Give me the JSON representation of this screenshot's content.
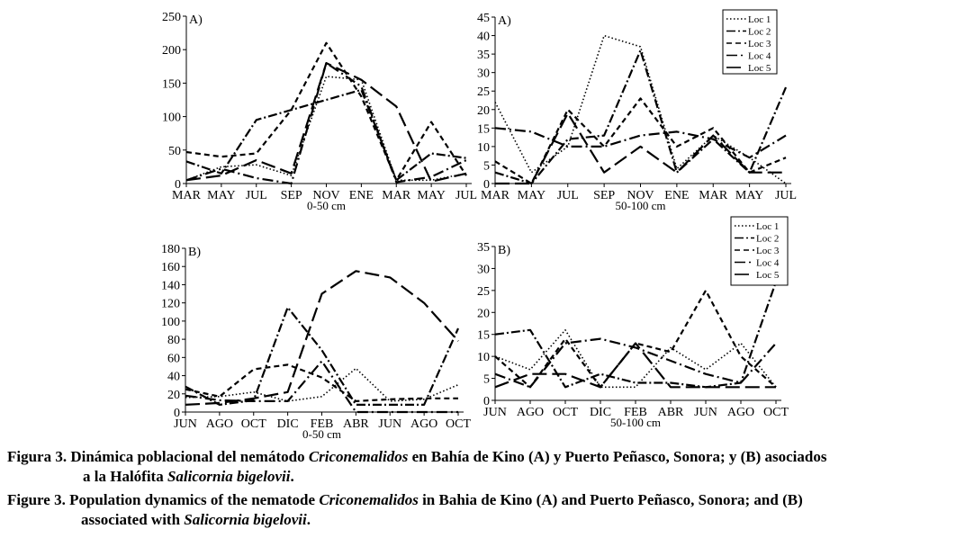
{
  "line_styles": {
    "Loc 1": "1.5,2.5",
    "Loc 2": "10,3,2,3",
    "Loc 3": "6,4",
    "Loc 4": "12,4,2,4",
    "Loc 5": "16,6"
  },
  "chart_data": [
    {
      "type": "line",
      "panel_label": "A)",
      "categories": [
        "MAR",
        "MAY",
        "JUL",
        "SEP",
        "NOV",
        "ENE",
        "MAR",
        "MAY",
        "JUL"
      ],
      "xlabel": "0-50 cm",
      "ylim": [
        0,
        250
      ],
      "yticks": [
        0,
        50,
        100,
        150,
        200,
        250
      ],
      "legend": false,
      "series": [
        {
          "name": "Loc 1",
          "values": [
            5,
            25,
            28,
            12,
            160,
            155,
            5,
            5,
            15
          ]
        },
        {
          "name": "Loc 2",
          "values": [
            33,
            15,
            95,
            110,
            125,
            140,
            5,
            45,
            38
          ]
        },
        {
          "name": "Loc 3",
          "values": [
            47,
            40,
            45,
            110,
            210,
            130,
            5,
            92,
            12
          ]
        },
        {
          "name": "Loc 4",
          "values": [
            5,
            22,
            8,
            0,
            180,
            145,
            2,
            10,
            35
          ]
        },
        {
          "name": "Loc 5",
          "values": [
            5,
            12,
            35,
            15,
            180,
            155,
            115,
            3,
            15
          ]
        }
      ]
    },
    {
      "type": "line",
      "panel_label": "A)",
      "categories": [
        "MAR",
        "MAY",
        "JUL",
        "SEP",
        "NOV",
        "ENE",
        "MAR",
        "MAY",
        "JUL"
      ],
      "xlabel": "50-100 cm",
      "ylim": [
        0,
        45
      ],
      "yticks": [
        0,
        5,
        10,
        15,
        20,
        25,
        30,
        35,
        40,
        45
      ],
      "legend": true,
      "series": [
        {
          "name": "Loc 1",
          "values": [
            22,
            3,
            10,
            40,
            37,
            4,
            13,
            7,
            0
          ]
        },
        {
          "name": "Loc 2",
          "values": [
            3,
            0,
            12,
            13,
            36,
            3,
            12,
            3,
            26
          ]
        },
        {
          "name": "Loc 3",
          "values": [
            6,
            0,
            20,
            10,
            23,
            10,
            15,
            3,
            7
          ]
        },
        {
          "name": "Loc 4",
          "values": [
            15,
            14,
            10,
            10,
            13,
            14,
            12,
            7,
            13
          ]
        },
        {
          "name": "Loc 5",
          "values": [
            0,
            0,
            19,
            3,
            10,
            3,
            13,
            3,
            3
          ]
        }
      ]
    },
    {
      "type": "line",
      "panel_label": "B)",
      "categories": [
        "JUN",
        "AGO",
        "OCT",
        "DIC",
        "FEB",
        "ABR",
        "JUN",
        "AGO",
        "OCT"
      ],
      "xlabel": "0-50 cm",
      "ylim": [
        0,
        180
      ],
      "yticks": [
        0,
        20,
        40,
        60,
        80,
        100,
        120,
        140,
        160,
        180
      ],
      "legend": false,
      "series": [
        {
          "name": "Loc 1",
          "values": [
            16,
            17,
            22,
            12,
            17,
            48,
            12,
            14,
            30
          ]
        },
        {
          "name": "Loc 2",
          "values": [
            28,
            8,
            13,
            115,
            68,
            8,
            8,
            8,
            92
          ]
        },
        {
          "name": "Loc 3",
          "values": [
            25,
            17,
            47,
            52,
            38,
            12,
            14,
            15,
            15
          ]
        },
        {
          "name": "Loc 4",
          "values": [
            18,
            13,
            12,
            12,
            56,
            0,
            0,
            0,
            0
          ]
        },
        {
          "name": "Loc 5",
          "values": [
            8,
            10,
            15,
            22,
            130,
            155,
            148,
            120,
            78
          ]
        }
      ]
    },
    {
      "type": "line",
      "panel_label": "B)",
      "categories": [
        "JUN",
        "AGO",
        "OCT",
        "DIC",
        "FEB",
        "ABR",
        "JUN",
        "AGO",
        "OCT"
      ],
      "xlabel": "50-100 cm",
      "ylim": [
        0,
        35
      ],
      "yticks": [
        0,
        5,
        10,
        15,
        20,
        25,
        30,
        35
      ],
      "legend": true,
      "series": [
        {
          "name": "Loc 1",
          "values": [
            10,
            7,
            16,
            3,
            3,
            12,
            7,
            13,
            3
          ]
        },
        {
          "name": "Loc 2",
          "values": [
            15,
            16,
            3,
            6,
            4,
            4,
            3,
            4,
            27
          ]
        },
        {
          "name": "Loc 3",
          "values": [
            10,
            3,
            14,
            3,
            13,
            11,
            25,
            10,
            3
          ]
        },
        {
          "name": "Loc 4",
          "values": [
            6,
            3,
            13,
            14,
            12,
            9,
            6,
            4,
            13
          ]
        },
        {
          "name": "Loc 5",
          "values": [
            3,
            6,
            6,
            3,
            13,
            3,
            3,
            3,
            3
          ]
        }
      ]
    }
  ],
  "caption": {
    "es_prefix": "Figura 3. Dinámica poblacional del nemátodo ",
    "es_italic": "Criconemalidos",
    "es_middle": " en Bahía de Kino (A) y Puerto Peñasco, Sonora; y (B) asociados",
    "es_line2_prefix": "a la Halófita ",
    "es_line2_italic": "Salicornia bigelovii",
    "es_line2_suffix": ".",
    "en_prefix": "Figure 3. Population dynamics of the nematode ",
    "en_italic": "Criconemalidos",
    "en_middle": " in Bahia de Kino (A) and Puerto Peñasco, Sonora; and (B)",
    "en_line2_prefix": "associated with ",
    "en_line2_italic": "Salicornia bigelovii",
    "en_line2_suffix": "."
  }
}
